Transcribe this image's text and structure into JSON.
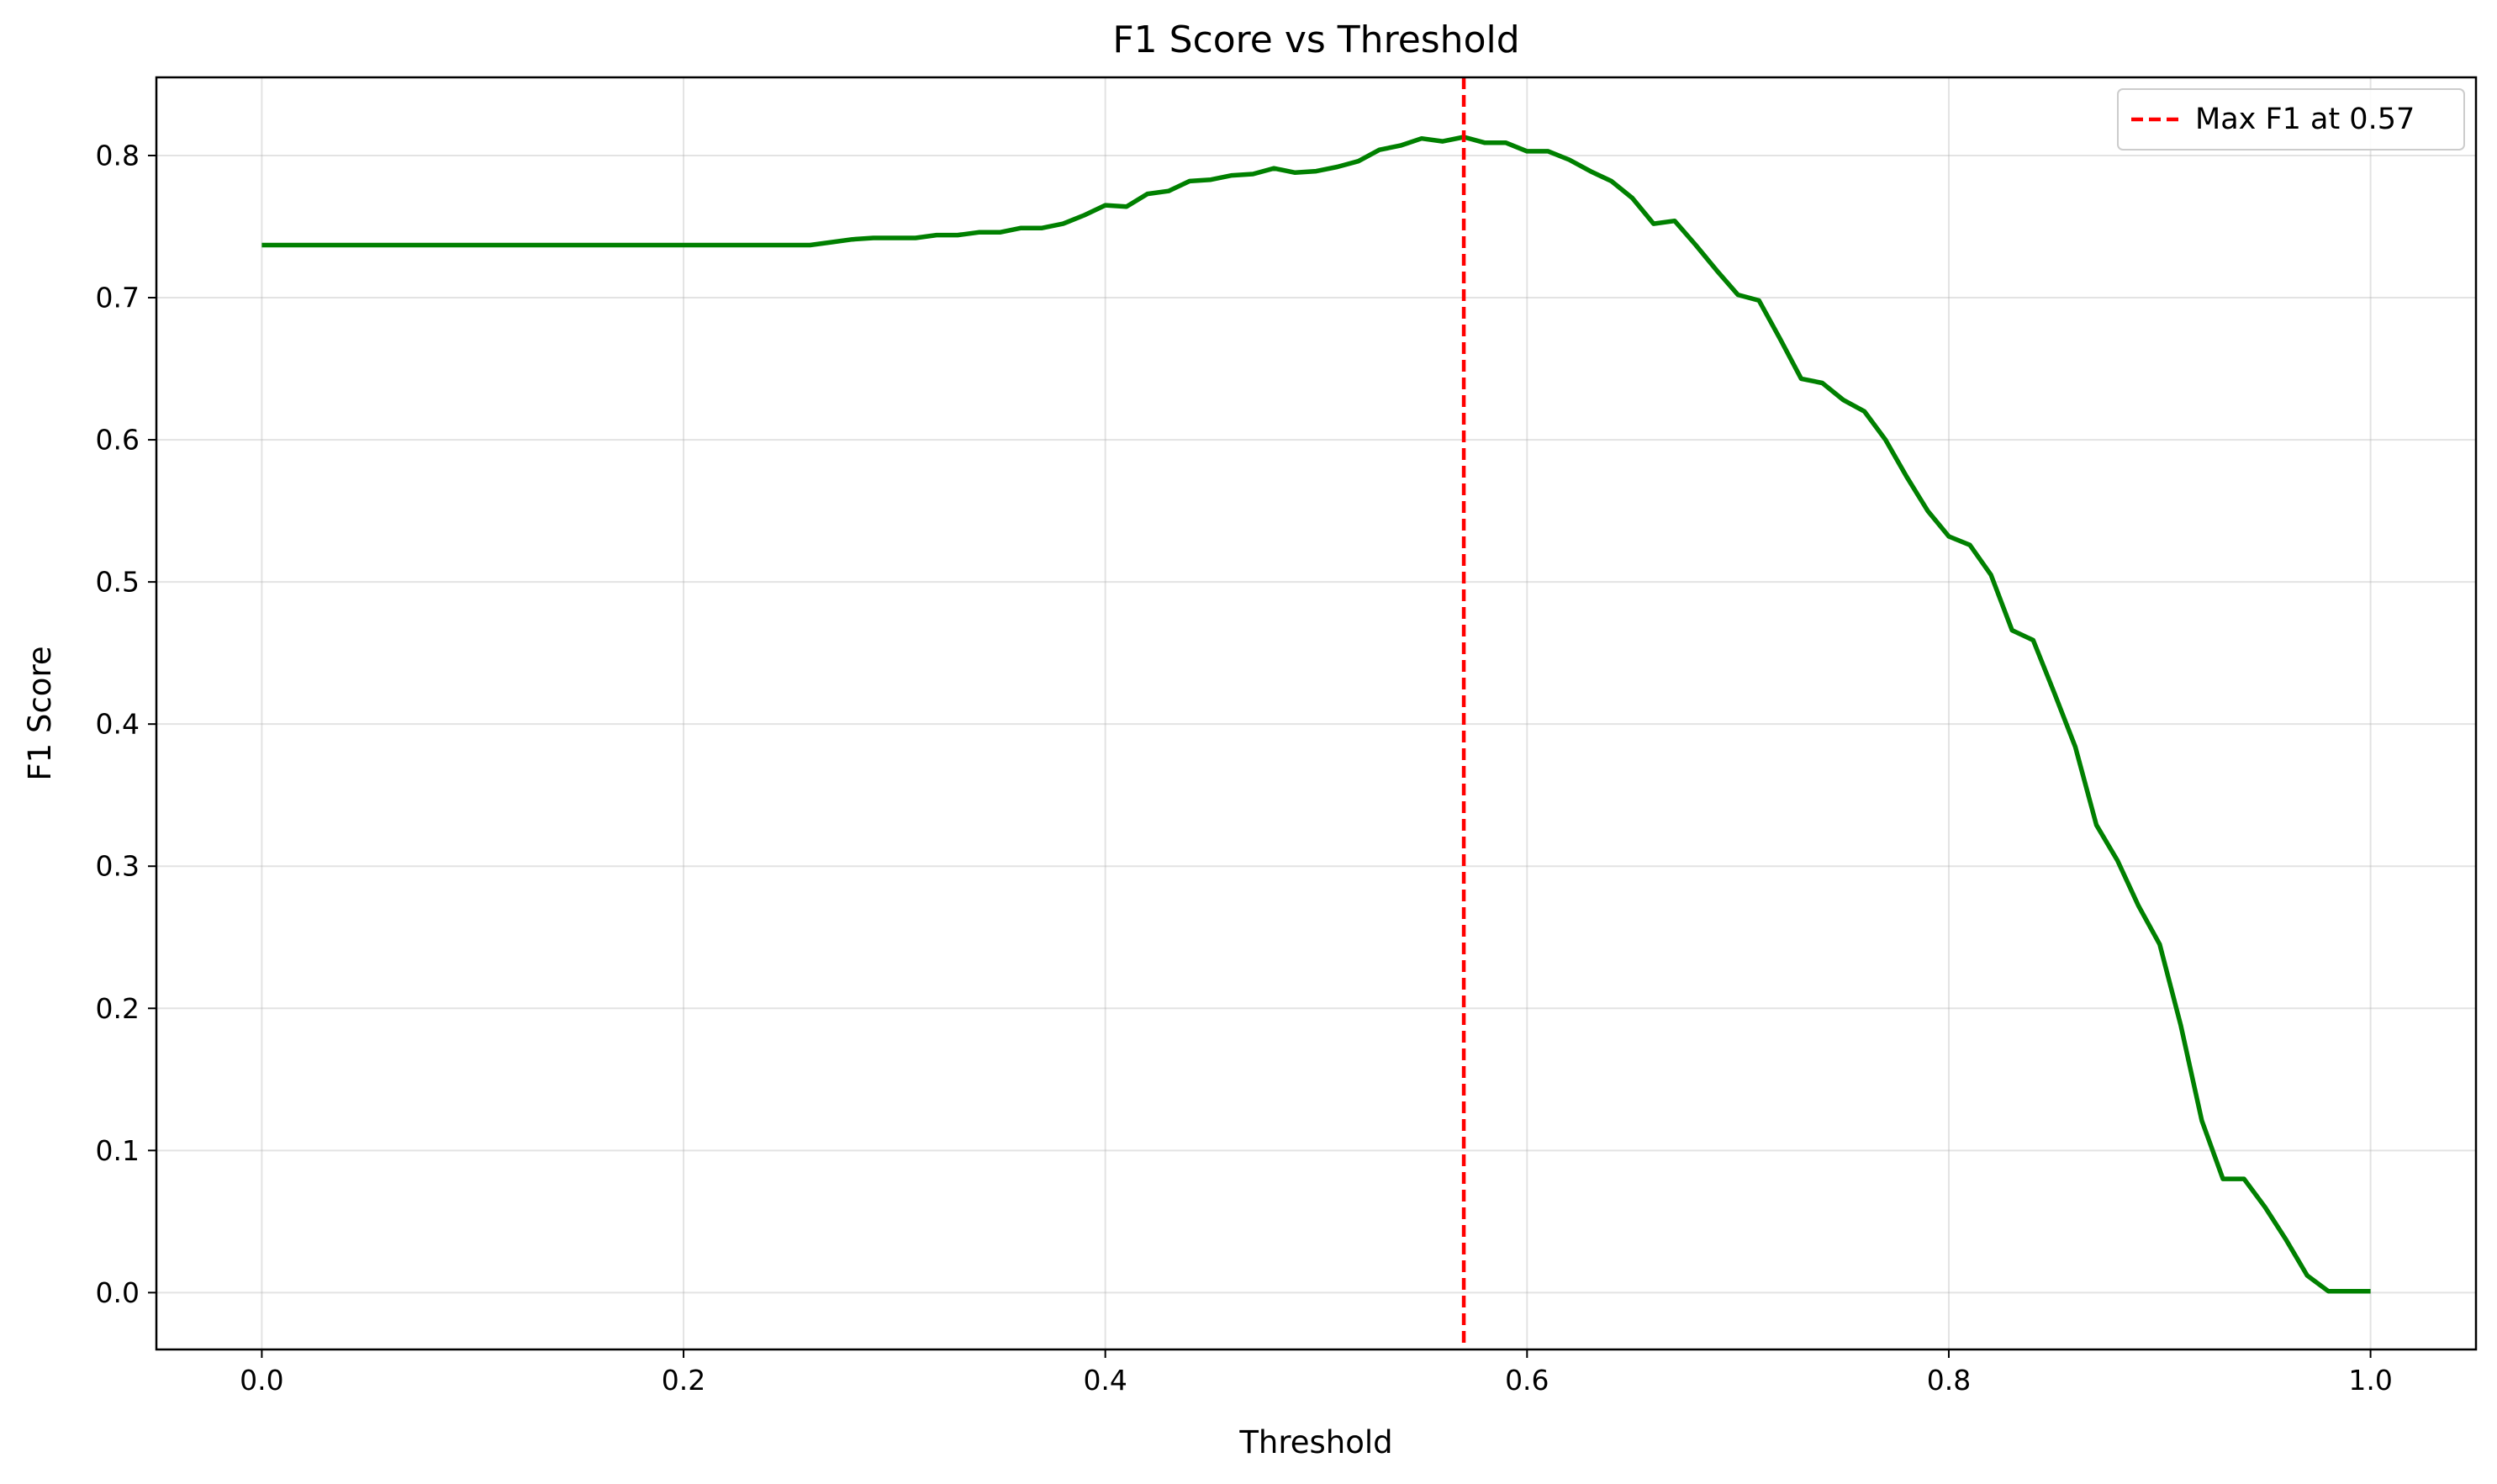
{
  "chart_data": {
    "type": "line",
    "title": "F1 Score vs Threshold",
    "xlabel": "Threshold",
    "ylabel": "F1 Score",
    "xlim": [
      -0.05,
      1.05
    ],
    "ylim": [
      -0.04,
      0.855
    ],
    "xticks": [
      0.0,
      0.2,
      0.4,
      0.6,
      0.8,
      1.0
    ],
    "yticks": [
      0.0,
      0.1,
      0.2,
      0.3,
      0.4,
      0.5,
      0.6,
      0.7,
      0.8
    ],
    "grid": true,
    "legend_position": "upper right",
    "series": [
      {
        "name": "",
        "color": "#008000",
        "x": [
          0.0,
          0.01,
          0.02,
          0.03,
          0.04,
          0.05,
          0.06,
          0.07,
          0.08,
          0.09,
          0.1,
          0.11,
          0.12,
          0.13,
          0.14,
          0.15,
          0.16,
          0.17,
          0.18,
          0.19,
          0.2,
          0.21,
          0.22,
          0.23,
          0.24,
          0.25,
          0.26,
          0.27,
          0.28,
          0.29,
          0.3,
          0.31,
          0.32,
          0.33,
          0.34,
          0.35,
          0.36,
          0.37,
          0.38,
          0.39,
          0.4,
          0.41,
          0.42,
          0.43,
          0.44,
          0.45,
          0.46,
          0.47,
          0.48,
          0.49,
          0.5,
          0.51,
          0.52,
          0.53,
          0.54,
          0.55,
          0.56,
          0.57,
          0.58,
          0.59,
          0.6,
          0.61,
          0.62,
          0.63,
          0.64,
          0.65,
          0.66,
          0.67,
          0.68,
          0.69,
          0.7,
          0.71,
          0.72,
          0.73,
          0.74,
          0.75,
          0.76,
          0.77,
          0.78,
          0.79,
          0.8,
          0.81,
          0.82,
          0.83,
          0.84,
          0.85,
          0.86,
          0.87,
          0.88,
          0.89,
          0.9,
          0.91,
          0.92,
          0.93,
          0.94,
          0.95,
          0.96,
          0.97,
          0.98,
          0.99,
          1.0
        ],
        "y": [
          0.737,
          0.737,
          0.737,
          0.737,
          0.737,
          0.737,
          0.737,
          0.737,
          0.737,
          0.737,
          0.737,
          0.737,
          0.737,
          0.737,
          0.737,
          0.737,
          0.737,
          0.737,
          0.737,
          0.737,
          0.737,
          0.737,
          0.737,
          0.737,
          0.737,
          0.737,
          0.737,
          0.739,
          0.741,
          0.742,
          0.742,
          0.742,
          0.744,
          0.744,
          0.746,
          0.746,
          0.749,
          0.749,
          0.752,
          0.758,
          0.765,
          0.764,
          0.773,
          0.775,
          0.782,
          0.783,
          0.786,
          0.787,
          0.791,
          0.788,
          0.789,
          0.792,
          0.796,
          0.804,
          0.807,
          0.812,
          0.81,
          0.813,
          0.809,
          0.809,
          0.803,
          0.803,
          0.797,
          0.789,
          0.782,
          0.77,
          0.752,
          0.754,
          0.737,
          0.719,
          0.702,
          0.698,
          0.671,
          0.643,
          0.64,
          0.628,
          0.62,
          0.6,
          0.574,
          0.55,
          0.532,
          0.526,
          0.505,
          0.466,
          0.459,
          0.422,
          0.384,
          0.329,
          0.304,
          0.272,
          0.245,
          0.188,
          0.121,
          0.08,
          0.08,
          0.06,
          0.037,
          0.012,
          0.001,
          0.001,
          0.001
        ]
      }
    ],
    "reference_lines": [
      {
        "orientation": "vertical",
        "x": 0.57,
        "color": "#ff0000",
        "style": "dashed",
        "label": "Max F1 at 0.57"
      }
    ]
  }
}
